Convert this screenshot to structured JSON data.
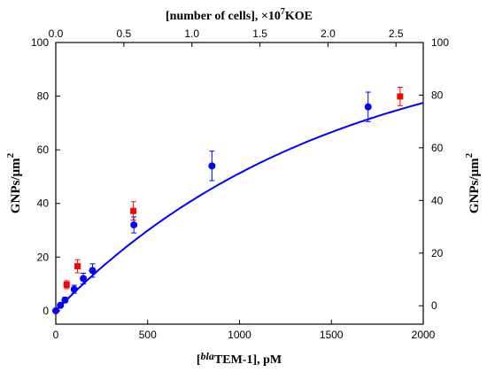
{
  "chart_data": {
    "type": "scatter",
    "top_axis": {
      "title": "[number of cells], ×10",
      "title_exponent": "7",
      "title_suffix": "KOE",
      "range": [
        0,
        2.7
      ],
      "ticks": [
        0.0,
        0.5,
        1.0,
        1.5,
        2.0,
        2.5
      ],
      "tick_labels": [
        "0.0",
        "0.5",
        "1.0",
        "1.5",
        "2.0",
        "2.5"
      ]
    },
    "bottom_axis": {
      "title_prefix": "[",
      "title_italic": "bla",
      "title_sub": "TEM-1",
      "title_suffix": "], pM",
      "range": [
        0,
        2000
      ],
      "ticks": [
        0,
        500,
        1000,
        1500,
        2000
      ],
      "tick_labels": [
        "0",
        "500",
        "1000",
        "1500",
        "2000"
      ]
    },
    "left_axis": {
      "title": "GNPs/µm",
      "title_exponent": "2",
      "range": [
        -5,
        100
      ],
      "ticks": [
        0,
        20,
        40,
        60,
        80,
        100
      ],
      "tick_labels": [
        "0",
        "20",
        "40",
        "60",
        "80",
        "100"
      ]
    },
    "right_axis": {
      "title": "GNPs/µm",
      "title_exponent": "2",
      "range": [
        -7,
        100
      ],
      "ticks": [
        0,
        20,
        40,
        60,
        80,
        100
      ],
      "tick_labels": [
        "0",
        "20",
        "40",
        "60",
        "80",
        "100"
      ]
    },
    "grid": false,
    "series": [
      {
        "marker": "circle",
        "color": "#0000ff",
        "axes": "bottom-left",
        "points": [
          {
            "x": 0,
            "y": 0,
            "err": 0.5
          },
          {
            "x": 25,
            "y": 2,
            "err": 0.8
          },
          {
            "x": 50,
            "y": 4,
            "err": 1.0
          },
          {
            "x": 100,
            "y": 8,
            "err": 1.5
          },
          {
            "x": 150,
            "y": 12,
            "err": 2.0
          },
          {
            "x": 200,
            "y": 15,
            "err": 2.5
          },
          {
            "x": 425,
            "y": 32,
            "err": 3.0
          },
          {
            "x": 850,
            "y": 54,
            "err": 5.5
          },
          {
            "x": 1700,
            "y": 76,
            "err": 5.5
          }
        ]
      },
      {
        "marker": "square",
        "color": "#ff0000",
        "axes": "top-right",
        "points": [
          {
            "x": 0.08,
            "y": 8,
            "err": 1.5
          },
          {
            "x": 0.16,
            "y": 15,
            "err": 2.5
          },
          {
            "x": 0.57,
            "y": 36,
            "err": 3.5
          },
          {
            "x": 2.53,
            "y": 79.5,
            "err": 3.5
          }
        ]
      }
    ],
    "fit_curve": {
      "color": "#0000ff",
      "axes": "bottom-left",
      "model": "saturation",
      "ymax": 105,
      "k": 0.00067,
      "x_range": [
        0,
        2000
      ]
    }
  }
}
